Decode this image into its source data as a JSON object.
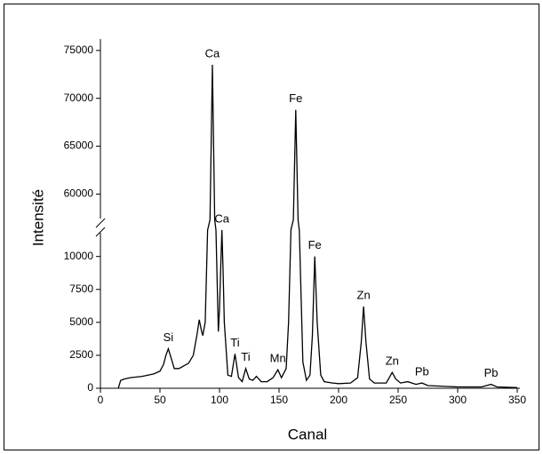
{
  "chart_data": {
    "type": "line",
    "xlabel": "Canal",
    "ylabel": "Intensité",
    "x": [
      15,
      17,
      20,
      25,
      30,
      35,
      40,
      45,
      50,
      53,
      55,
      57,
      59,
      62,
      66,
      70,
      74,
      78,
      81,
      83,
      85,
      86,
      88,
      90,
      92,
      94,
      96,
      97,
      99,
      100,
      101,
      102,
      103,
      104,
      107,
      110,
      113,
      116,
      119,
      122,
      125,
      128,
      131,
      135,
      140,
      145,
      149,
      152,
      156,
      158,
      160,
      162,
      164,
      166,
      167,
      170,
      173,
      176,
      178,
      180,
      182,
      185,
      188,
      195,
      200,
      210,
      216,
      219,
      221,
      223,
      226,
      230,
      240,
      245,
      248,
      252,
      258,
      265,
      270,
      275,
      300,
      320,
      328,
      333,
      350
    ],
    "values": [
      0,
      600,
      700,
      800,
      850,
      900,
      1000,
      1100,
      1300,
      1800,
      2500,
      3000,
      2400,
      1500,
      1500,
      1700,
      1900,
      2500,
      4000,
      5200,
      4300,
      4000,
      5000,
      12000,
      40000,
      73500,
      40000,
      12000,
      4300,
      6000,
      9000,
      12200,
      9000,
      5000,
      1000,
      900,
      2600,
      800,
      500,
      1500,
      700,
      600,
      900,
      500,
      500,
      800,
      1400,
      800,
      1500,
      5000,
      13000,
      40000,
      68800,
      40000,
      12000,
      2000,
      600,
      1000,
      4000,
      10000,
      5000,
      1000,
      500,
      400,
      350,
      400,
      800,
      3500,
      6200,
      3500,
      700,
      400,
      400,
      1200,
      700,
      400,
      500,
      300,
      400,
      200,
      100,
      100,
      300,
      100,
      50
    ],
    "color": "#000000",
    "xlim": [
      0,
      350
    ],
    "xticks": [
      0,
      50,
      100,
      150,
      200,
      250,
      300,
      350
    ],
    "ylim": [
      0,
      76000
    ],
    "ybreak": [
      12000,
      58000
    ],
    "yticks": [
      0,
      2500,
      5000,
      7500,
      10000,
      60000,
      65000,
      70000,
      75000
    ],
    "annotations": [
      {
        "text": "Si",
        "x": 57
      },
      {
        "text": "Ca",
        "x": 94
      },
      {
        "text": "Ca",
        "x": 102
      },
      {
        "text": "Ti",
        "x": 113
      },
      {
        "text": "Ti",
        "x": 122
      },
      {
        "text": "Mn",
        "x": 149
      },
      {
        "text": "Fe",
        "x": 164
      },
      {
        "text": "Fe",
        "x": 180
      },
      {
        "text": "Zn",
        "x": 221
      },
      {
        "text": "Zn",
        "x": 245
      },
      {
        "text": "Pb",
        "x": 270
      },
      {
        "text": "Pb",
        "x": 328
      }
    ]
  }
}
